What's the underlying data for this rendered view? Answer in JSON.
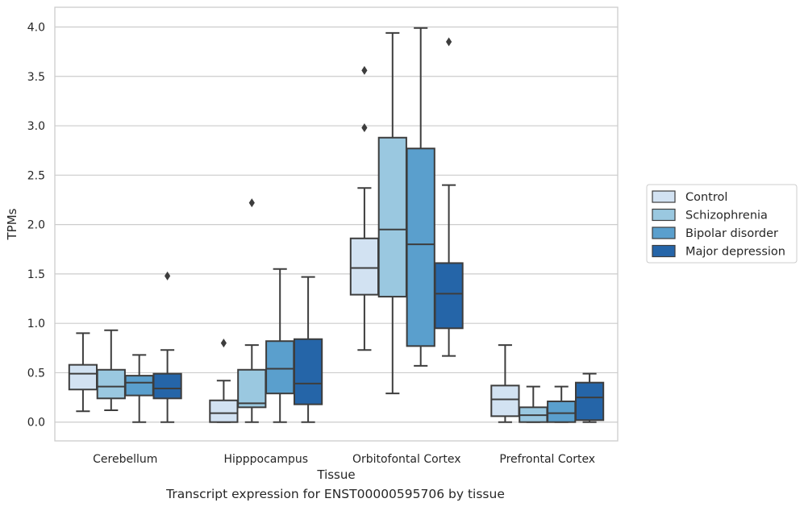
{
  "caption": "Transcript expression for ENST00000595706 by tissue",
  "chart_data": {
    "type": "box",
    "xlabel": "Tissue",
    "ylabel": "TPMs",
    "ylim": [
      -0.19,
      4.2
    ],
    "yticks": [
      "0.0",
      "0.5",
      "1.0",
      "1.5",
      "2.0",
      "2.5",
      "3.0",
      "3.5",
      "4.0"
    ],
    "grid": "horizontal",
    "legend_position": "right",
    "categories": [
      "Cerebellum",
      "Hipppocampus",
      "Orbitofontal Cortex",
      "Prefrontal Cortex"
    ],
    "series": [
      {
        "name": "Control",
        "color": "#d2e2f2",
        "boxes": [
          {
            "min": 0.11,
            "q1": 0.33,
            "median": 0.49,
            "q3": 0.58,
            "max": 0.9,
            "outliers": []
          },
          {
            "min": 0.0,
            "q1": 0.0,
            "median": 0.09,
            "q3": 0.22,
            "max": 0.42,
            "outliers": [
              0.8
            ]
          },
          {
            "min": 0.73,
            "q1": 1.29,
            "median": 1.56,
            "q3": 1.86,
            "max": 2.37,
            "outliers": [
              2.98,
              3.56
            ]
          },
          {
            "min": 0.0,
            "q1": 0.06,
            "median": 0.23,
            "q3": 0.37,
            "max": 0.78,
            "outliers": []
          }
        ]
      },
      {
        "name": "Schizophrenia",
        "color": "#9ac8e0",
        "boxes": [
          {
            "min": 0.12,
            "q1": 0.24,
            "median": 0.36,
            "q3": 0.53,
            "max": 0.93,
            "outliers": []
          },
          {
            "min": 0.0,
            "q1": 0.15,
            "median": 0.19,
            "q3": 0.53,
            "max": 0.78,
            "outliers": [
              2.22
            ]
          },
          {
            "min": 0.29,
            "q1": 1.27,
            "median": 1.95,
            "q3": 2.88,
            "max": 3.94,
            "outliers": []
          },
          {
            "min": 0.0,
            "q1": 0.0,
            "median": 0.07,
            "q3": 0.15,
            "max": 0.36,
            "outliers": []
          }
        ]
      },
      {
        "name": "Bipolar disorder",
        "color": "#5a9fcd",
        "boxes": [
          {
            "min": 0.0,
            "q1": 0.27,
            "median": 0.4,
            "q3": 0.47,
            "max": 0.68,
            "outliers": []
          },
          {
            "min": 0.0,
            "q1": 0.29,
            "median": 0.54,
            "q3": 0.82,
            "max": 1.55,
            "outliers": []
          },
          {
            "min": 0.57,
            "q1": 0.77,
            "median": 1.8,
            "q3": 2.77,
            "max": 3.99,
            "outliers": []
          },
          {
            "min": 0.0,
            "q1": 0.0,
            "median": 0.09,
            "q3": 0.21,
            "max": 0.36,
            "outliers": []
          }
        ]
      },
      {
        "name": "Major depression",
        "color": "#2565a8",
        "boxes": [
          {
            "min": 0.0,
            "q1": 0.24,
            "median": 0.34,
            "q3": 0.49,
            "max": 0.73,
            "outliers": [
              1.48
            ]
          },
          {
            "min": 0.0,
            "q1": 0.18,
            "median": 0.39,
            "q3": 0.84,
            "max": 1.47,
            "outliers": []
          },
          {
            "min": 0.67,
            "q1": 0.95,
            "median": 1.3,
            "q3": 1.61,
            "max": 2.4,
            "outliers": [
              3.85
            ]
          },
          {
            "min": 0.0,
            "q1": 0.02,
            "median": 0.25,
            "q3": 0.4,
            "max": 0.49,
            "outliers": []
          }
        ]
      }
    ]
  }
}
